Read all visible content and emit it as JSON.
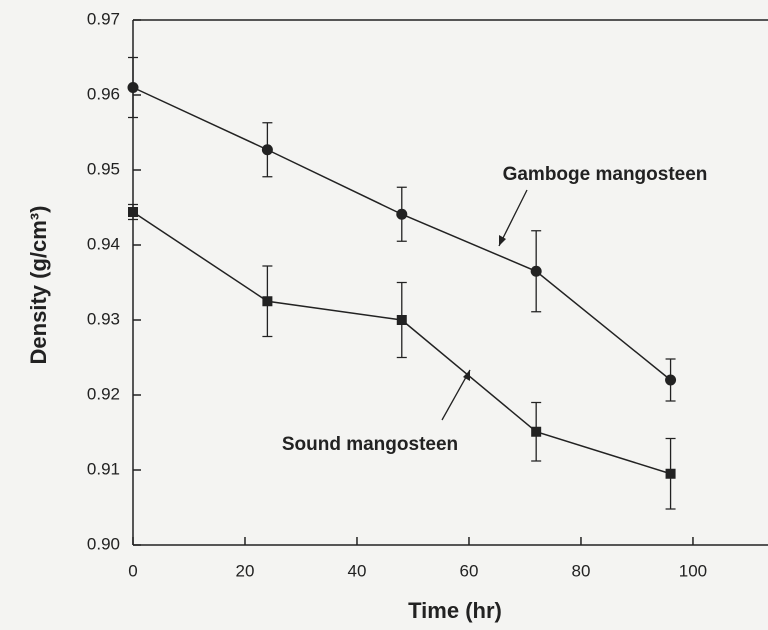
{
  "chart_data": {
    "type": "line",
    "xlabel": "Time (hr)",
    "ylabel": "Density (g/cm³)",
    "xlim": [
      0,
      113.4
    ],
    "xticks": [
      0,
      20,
      40,
      60,
      80,
      100
    ],
    "ylim": [
      0.9,
      0.97
    ],
    "yticks": [
      {
        "value": 0.9,
        "label": "0.90"
      },
      0.91,
      0.92,
      0.93,
      0.94,
      0.95,
      0.96,
      0.97
    ],
    "x": [
      0,
      24,
      48,
      72,
      96
    ],
    "series": [
      {
        "name": "Gamboge mangosteen",
        "color": "#222222",
        "marker": "circle",
        "values": [
          0.961,
          0.9527,
          0.9441,
          0.9365,
          0.922
        ],
        "errors": [
          0.004,
          0.0036,
          0.0036,
          0.0054,
          0.0028
        ]
      },
      {
        "name": "Sound mangosteen",
        "color": "#222222",
        "marker": "square",
        "values": [
          0.9444,
          0.9325,
          0.93,
          0.9151,
          0.9095
        ],
        "errors": [
          0.001,
          0.0047,
          0.005,
          0.0039,
          0.0047
        ]
      }
    ]
  }
}
